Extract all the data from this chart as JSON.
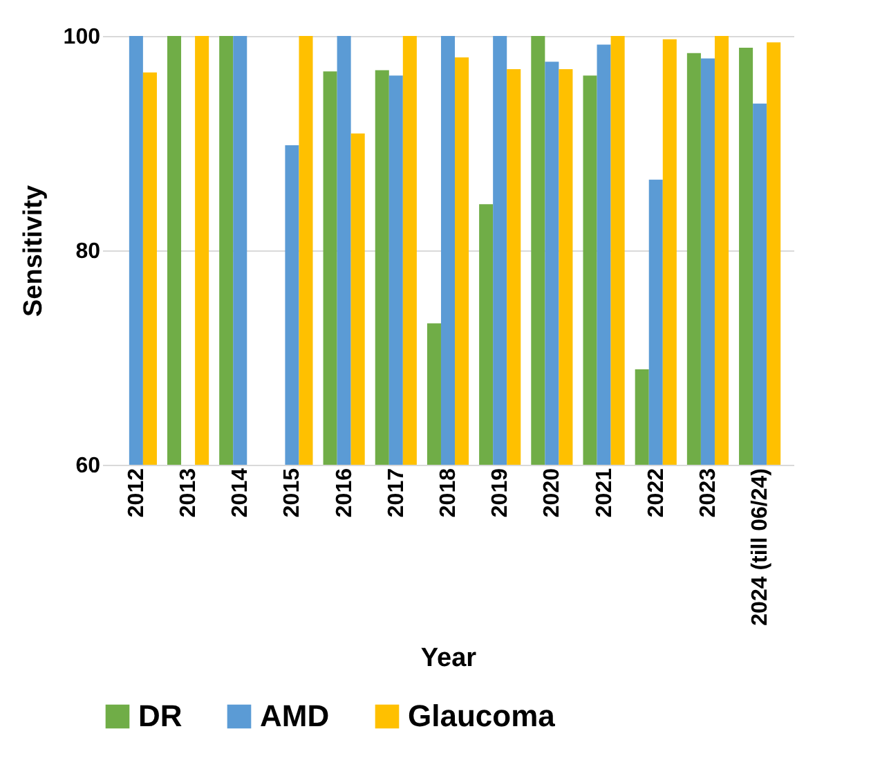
{
  "chart_data": {
    "type": "bar",
    "xlabel": "Year",
    "ylabel": "Sensitivity",
    "categories": [
      "2012",
      "2013",
      "2014",
      "2015",
      "2016",
      "2017",
      "2018",
      "2019",
      "2020",
      "2021",
      "2022",
      "2023",
      "2024 (till 06/24)"
    ],
    "series": [
      {
        "name": "DR",
        "color": "#70ad47",
        "values": [
          null,
          100,
          100,
          null,
          96.7,
          96.8,
          73.2,
          84.3,
          100,
          96.3,
          68.9,
          98.4,
          98.9
        ]
      },
      {
        "name": "AMD",
        "color": "#5b9bd5",
        "values": [
          100,
          null,
          100,
          89.8,
          100,
          96.3,
          100,
          100,
          97.6,
          99.2,
          86.6,
          97.9,
          93.7
        ]
      },
      {
        "name": "Glaucoma",
        "color": "#ffc000",
        "values": [
          96.6,
          100,
          null,
          100,
          90.9,
          100,
          98.0,
          96.9,
          96.9,
          100,
          99.7,
          100,
          99.4
        ]
      }
    ],
    "ylim": [
      60,
      100
    ],
    "yticks": [
      60,
      80,
      100
    ],
    "grid": "y",
    "legend": "bottom"
  }
}
